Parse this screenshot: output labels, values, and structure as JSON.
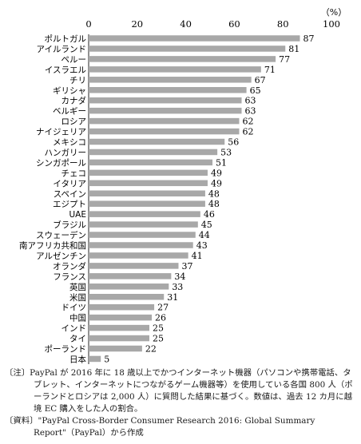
{
  "chart_data": {
    "type": "bar",
    "orientation": "horizontal",
    "unit_label": "（%）",
    "xlim": [
      0,
      100
    ],
    "xticks": [
      0,
      20,
      40,
      60,
      80,
      100
    ],
    "grid": false,
    "bar_color": "#a8a8a8",
    "categories": [
      "ポルトガル",
      "アイルランド",
      "ペルー",
      "イスラエル",
      "チリ",
      "ギリシャ",
      "カナダ",
      "ベルギー",
      "ロシア",
      "ナイジェリア",
      "メキシコ",
      "ハンガリー",
      "シンガポール",
      "チェコ",
      "イタリア",
      "スペイン",
      "エジプト",
      "UAE",
      "ブラジル",
      "スウェーデン",
      "南アフリカ共和国",
      "アルゼンチン",
      "オランダ",
      "フランス",
      "英国",
      "米国",
      "ドイツ",
      "中国",
      "インド",
      "タイ",
      "ポーランド",
      "日本"
    ],
    "values": [
      87,
      81,
      77,
      71,
      67,
      65,
      63,
      63,
      62,
      62,
      56,
      53,
      51,
      49,
      49,
      48,
      48,
      46,
      45,
      44,
      43,
      41,
      37,
      34,
      33,
      31,
      27,
      26,
      25,
      25,
      22,
      5
    ]
  },
  "notes": {
    "note_text": "〔注〕PayPal が 2016 年に 18 歳以上でかつインターネット機器（パソコンや携帯電話、タブレット、インターネットにつながるゲーム機器等）を使用している各国 800 人（ポーランドとロシアは 2,000 人）に質問した結果に基づく。数値は、過去 12 カ月に越境 EC 購入をした人の割合。",
    "source_text": "〔資料〕\"PayPal Cross-Border Consumer Research 2016: Global Summary Report\"（PayPal）から作成"
  }
}
